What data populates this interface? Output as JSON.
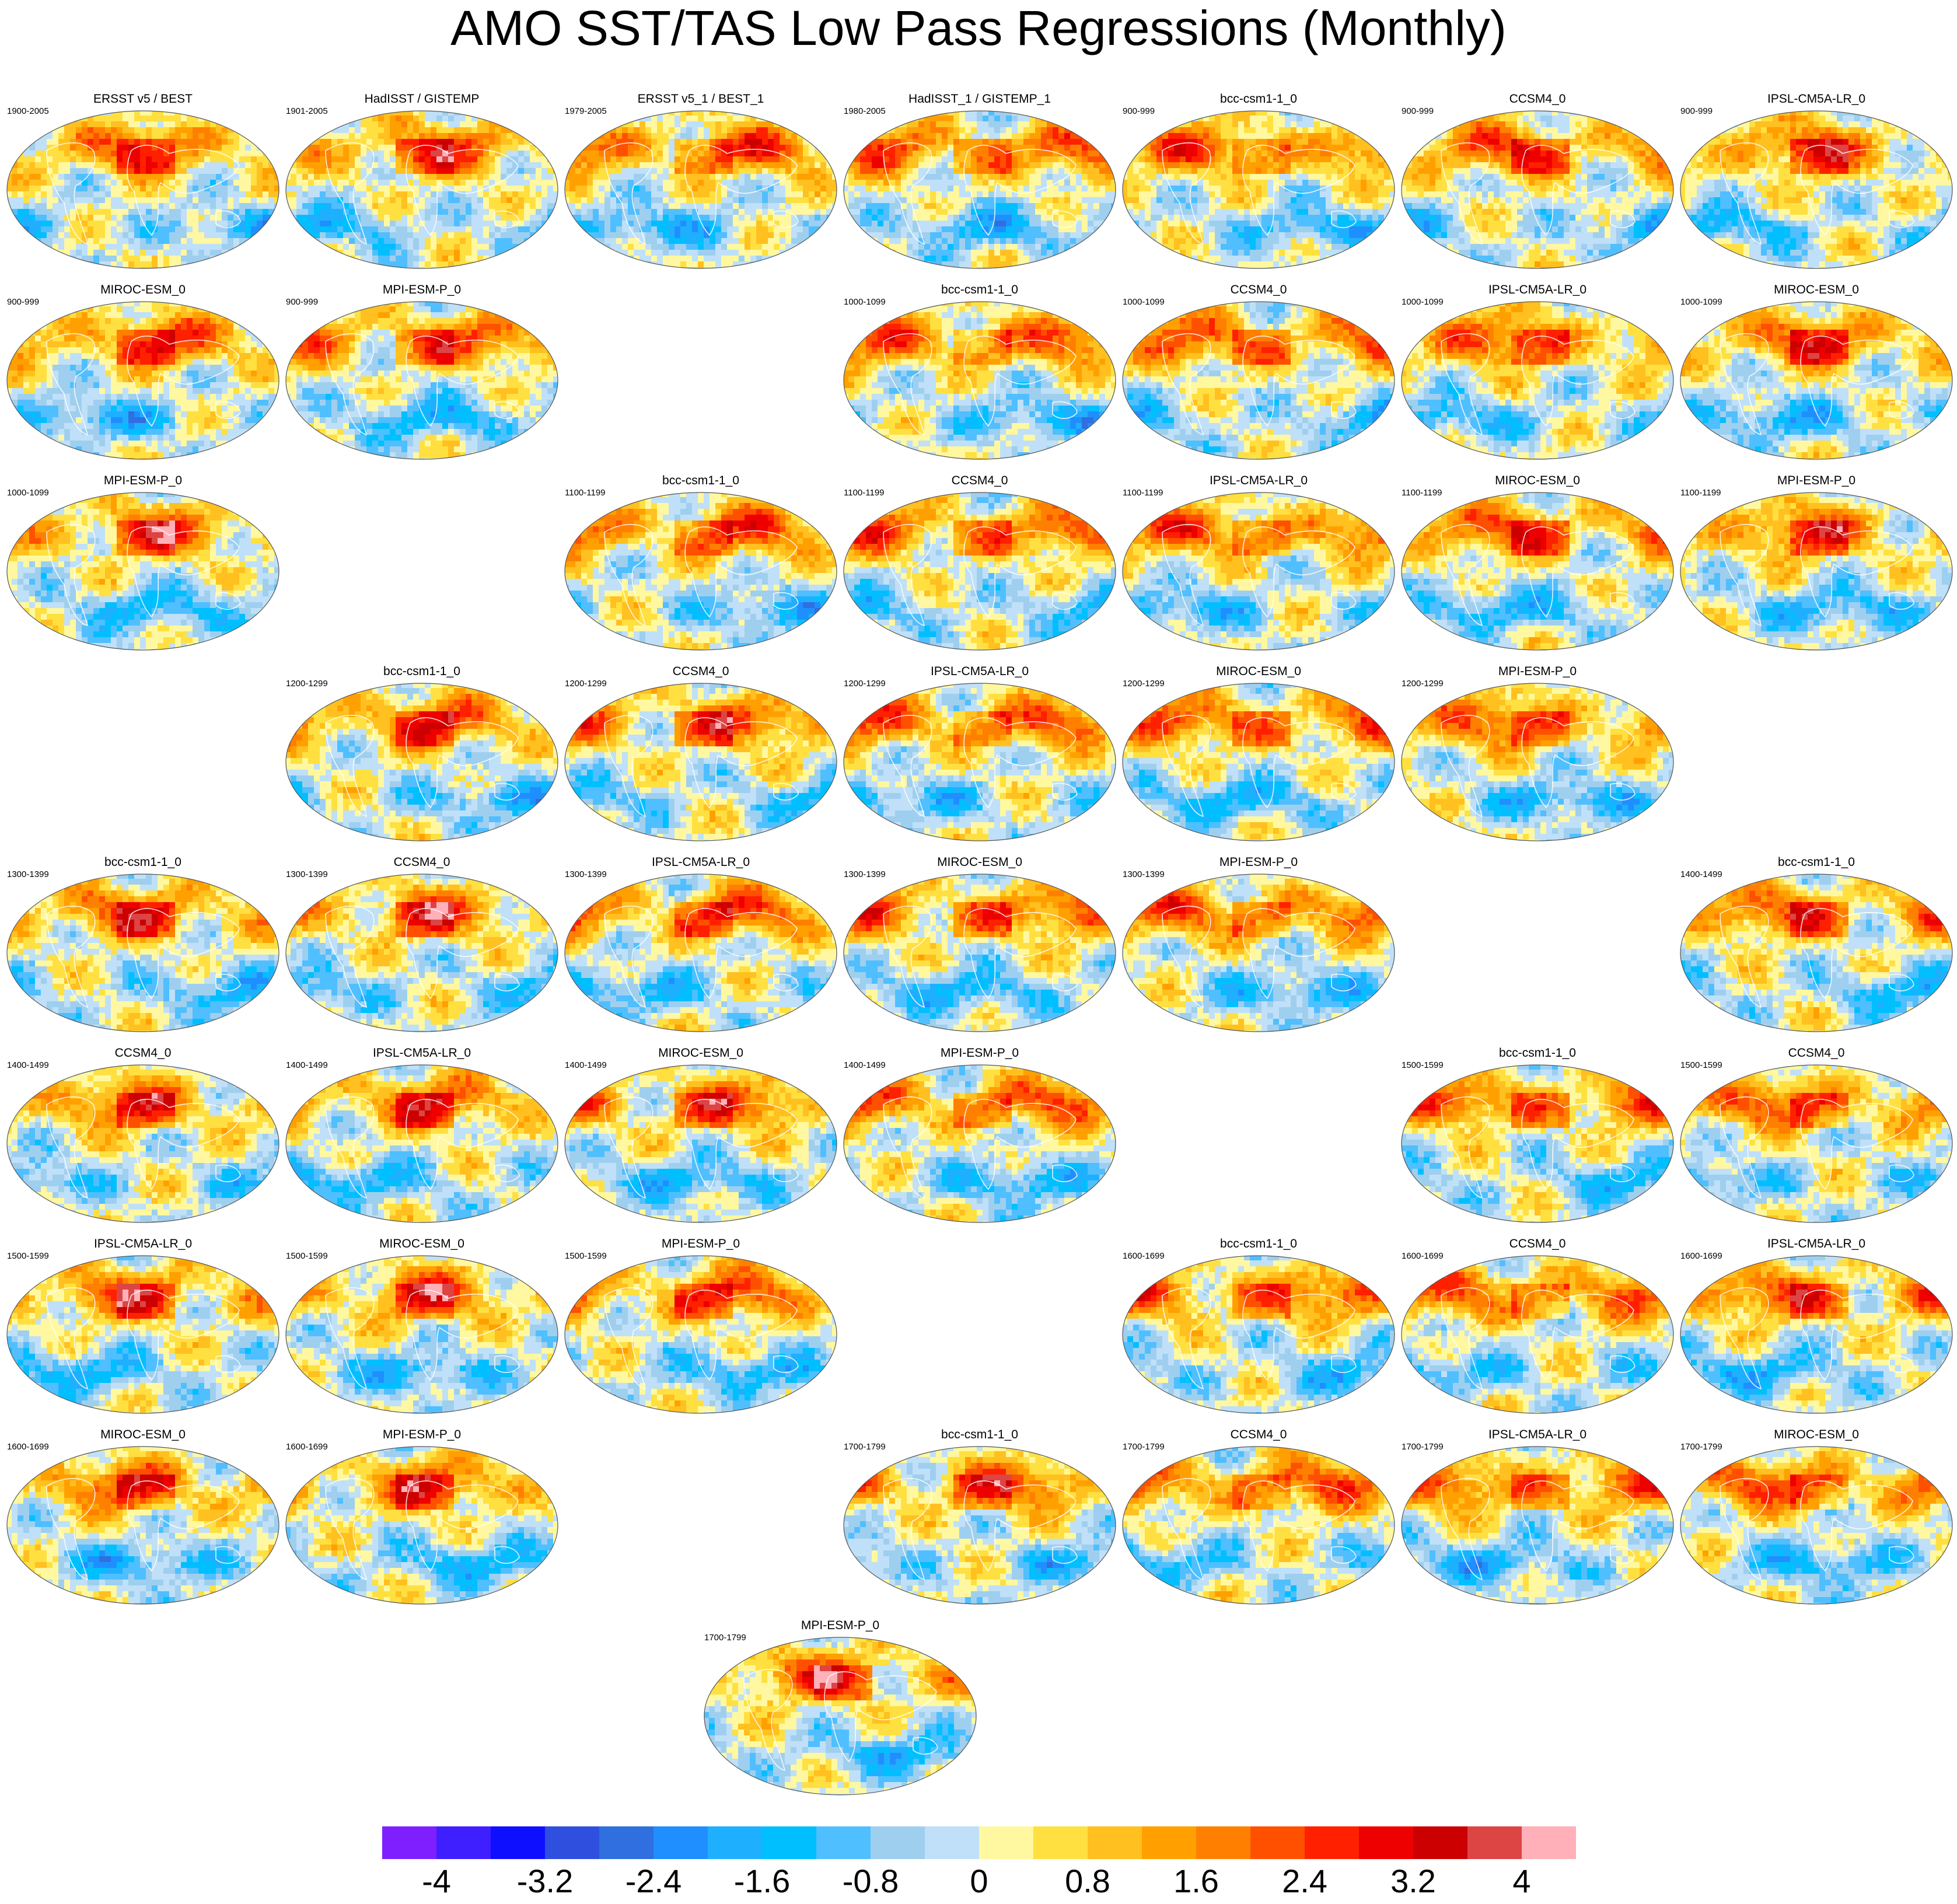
{
  "title": "AMO SST/TAS Low Pass Regressions (Monthly)",
  "panels": [
    {
      "title": "ERSST v5 / BEST",
      "period": "1900-2005"
    },
    {
      "title": "HadISST / GISTEMP",
      "period": "1901-2005"
    },
    {
      "title": "ERSST v5_1 / BEST_1",
      "period": "1979-2005"
    },
    {
      "title": "HadISST_1 / GISTEMP_1",
      "period": "1980-2005"
    },
    {
      "title": "bcc-csm1-1_0",
      "period": "900-999"
    },
    {
      "title": "CCSM4_0",
      "period": "900-999"
    },
    {
      "title": "IPSL-CM5A-LR_0",
      "period": "900-999"
    },
    {
      "title": "MIROC-ESM_0",
      "period": "900-999"
    },
    {
      "title": "MPI-ESM-P_0",
      "period": "900-999"
    },
    {
      "title": "bcc-csm1-1_0",
      "period": "1000-1099"
    },
    {
      "title": "CCSM4_0",
      "period": "1000-1099"
    },
    {
      "title": "IPSL-CM5A-LR_0",
      "period": "1000-1099"
    },
    {
      "title": "MIROC-ESM_0",
      "period": "1000-1099"
    },
    {
      "title": "MPI-ESM-P_0",
      "period": "1000-1099"
    },
    {
      "title": "bcc-csm1-1_0",
      "period": "1100-1199"
    },
    {
      "title": "CCSM4_0",
      "period": "1100-1199"
    },
    {
      "title": "IPSL-CM5A-LR_0",
      "period": "1100-1199"
    },
    {
      "title": "MIROC-ESM_0",
      "period": "1100-1199"
    },
    {
      "title": "MPI-ESM-P_0",
      "period": "1100-1199"
    },
    {
      "title": "bcc-csm1-1_0",
      "period": "1200-1299"
    },
    {
      "title": "CCSM4_0",
      "period": "1200-1299"
    },
    {
      "title": "IPSL-CM5A-LR_0",
      "period": "1200-1299"
    },
    {
      "title": "MIROC-ESM_0",
      "period": "1200-1299"
    },
    {
      "title": "MPI-ESM-P_0",
      "period": "1200-1299"
    },
    {
      "title": "bcc-csm1-1_0",
      "period": "1300-1399"
    },
    {
      "title": "CCSM4_0",
      "period": "1300-1399"
    },
    {
      "title": "IPSL-CM5A-LR_0",
      "period": "1300-1399"
    },
    {
      "title": "MIROC-ESM_0",
      "period": "1300-1399"
    },
    {
      "title": "MPI-ESM-P_0",
      "period": "1300-1399"
    },
    {
      "title": "bcc-csm1-1_0",
      "period": "1400-1499"
    },
    {
      "title": "CCSM4_0",
      "period": "1400-1499"
    },
    {
      "title": "IPSL-CM5A-LR_0",
      "period": "1400-1499"
    },
    {
      "title": "MIROC-ESM_0",
      "period": "1400-1499"
    },
    {
      "title": "MPI-ESM-P_0",
      "period": "1400-1499"
    },
    {
      "title": "bcc-csm1-1_0",
      "period": "1500-1599"
    },
    {
      "title": "CCSM4_0",
      "period": "1500-1599"
    },
    {
      "title": "IPSL-CM5A-LR_0",
      "period": "1500-1599"
    },
    {
      "title": "MIROC-ESM_0",
      "period": "1500-1599"
    },
    {
      "title": "MPI-ESM-P_0",
      "period": "1500-1599"
    },
    {
      "title": "bcc-csm1-1_0",
      "period": "1600-1699"
    },
    {
      "title": "CCSM4_0",
      "period": "1600-1699"
    },
    {
      "title": "IPSL-CM5A-LR_0",
      "period": "1600-1699"
    },
    {
      "title": "MIROC-ESM_0",
      "period": "1600-1699"
    },
    {
      "title": "MPI-ESM-P_0",
      "period": "1600-1699"
    },
    {
      "title": "bcc-csm1-1_0",
      "period": "1700-1799"
    },
    {
      "title": "CCSM4_0",
      "period": "1700-1799"
    },
    {
      "title": "IPSL-CM5A-LR_0",
      "period": "1700-1799"
    },
    {
      "title": "MIROC-ESM_0",
      "period": "1700-1799"
    },
    {
      "title": "MPI-ESM-P_0",
      "period": "1700-1799"
    }
  ],
  "colorbar": {
    "colors": [
      "#7f1fff",
      "#3f1fff",
      "#0f0fff",
      "#2f4fdf",
      "#2f6fdf",
      "#1f8fff",
      "#1fafff",
      "#00bfff",
      "#4fbfff",
      "#9fcfef",
      "#bfe0f8",
      "#fff8a0",
      "#ffe040",
      "#ffc020",
      "#ffa000",
      "#ff8000",
      "#ff5000",
      "#ff2000",
      "#ee0000",
      "#cc0000",
      "#dd4444",
      "#ffb0b8"
    ],
    "labels": [
      "-4",
      "-3.2",
      "-2.4",
      "-1.6",
      "-0.8",
      "0",
      "0.8",
      "1.6",
      "2.4",
      "3.2",
      "4"
    ]
  }
}
